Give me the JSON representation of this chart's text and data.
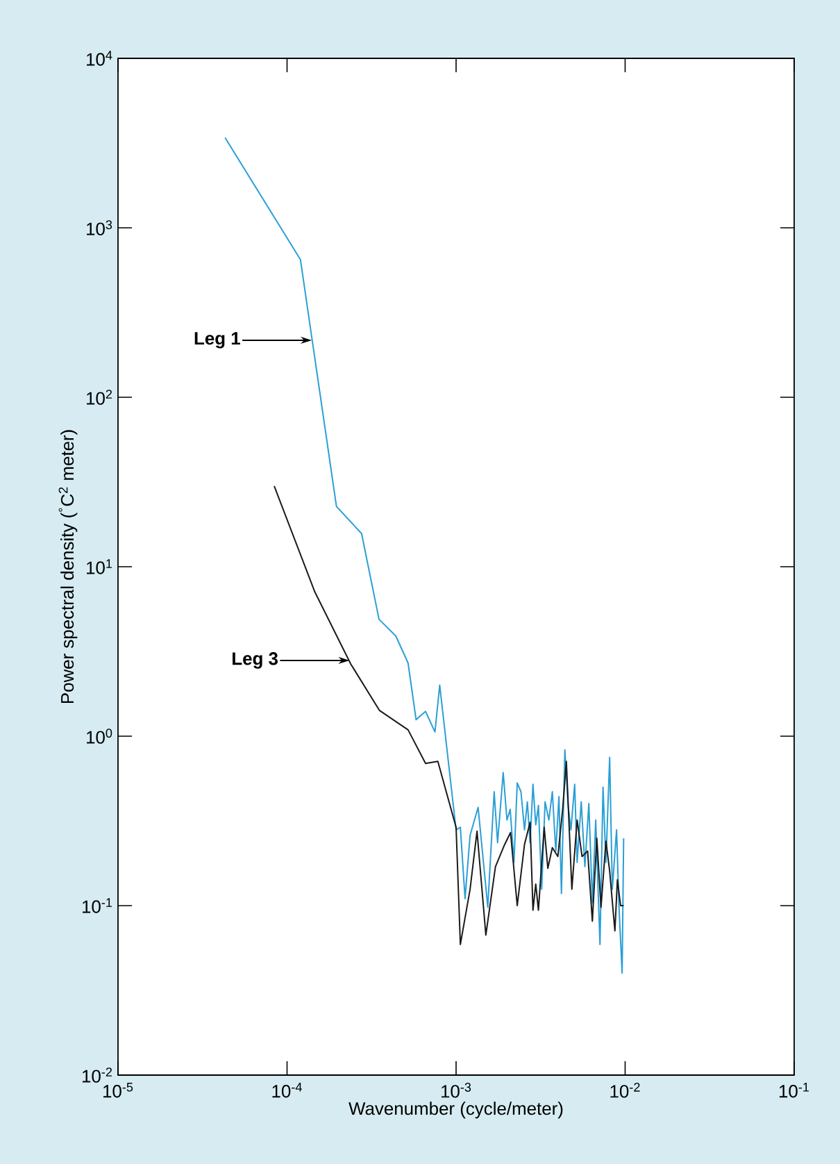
{
  "chart_data": {
    "type": "line",
    "xlabel": "Wavenumber (cycle/meter)",
    "ylabel": "Power spectral density ($^{°}$C$^{2}$ meter)",
    "log": "xy",
    "grid": false,
    "xlim": [
      1e-05,
      0.1
    ],
    "ylim": [
      0.01,
      10000
    ],
    "xticks": [
      {
        "value": 1e-05,
        "label": "10$^{-5}$"
      },
      {
        "value": 0.0001,
        "label": "10$^{-4}$"
      },
      {
        "value": 0.001,
        "label": "10$^{-3}$"
      },
      {
        "value": 0.01,
        "label": "10$^{-2}$"
      },
      {
        "value": 0.1,
        "label": "10$^{-1}$"
      }
    ],
    "yticks": [
      {
        "value": 0.01,
        "label": "10$^{-2}$"
      },
      {
        "value": 0.1,
        "label": "10$^{-1}$"
      },
      {
        "value": 1,
        "label": "10$^{0}$"
      },
      {
        "value": 10,
        "label": "10$^{1}$"
      },
      {
        "value": 100,
        "label": "10$^{2}$"
      },
      {
        "value": 1000,
        "label": "10$^{3}$"
      },
      {
        "value": 10000,
        "label": "10$^{4}$"
      }
    ],
    "series": [
      {
        "color": "#2a9fd6",
        "x": [
          4.3e-05,
          0.00012,
          0.000196,
          0.000276,
          0.00035,
          0.00044,
          0.00052,
          0.00058,
          0.00066,
          0.00075,
          0.0008,
          0.001,
          0.00106,
          0.00113,
          0.00121,
          0.00135,
          0.00154,
          0.00168,
          0.00176,
          0.0019,
          0.002,
          0.00209,
          0.0022,
          0.0023,
          0.00242,
          0.00254,
          0.00264,
          0.00274,
          0.00285,
          0.00296,
          0.00307,
          0.00321,
          0.00336,
          0.00354,
          0.00371,
          0.00389,
          0.00406,
          0.0042,
          0.0044,
          0.0046,
          0.00478,
          0.00503,
          0.0052,
          0.0055,
          0.00578,
          0.0061,
          0.0064,
          0.0067,
          0.0071,
          0.0074,
          0.0077,
          0.0081,
          0.0084,
          0.0089,
          0.0092,
          0.0096,
          0.0098
        ],
        "values": [
          3400,
          650,
          22.7,
          15.7,
          4.9,
          3.9,
          2.7,
          1.25,
          1.4,
          1.06,
          2.0,
          0.28,
          0.29,
          0.11,
          0.26,
          0.38,
          0.098,
          0.47,
          0.235,
          0.61,
          0.32,
          0.37,
          0.18,
          0.53,
          0.47,
          0.28,
          0.41,
          0.235,
          0.52,
          0.3,
          0.39,
          0.125,
          0.41,
          0.32,
          0.47,
          0.21,
          0.44,
          0.118,
          0.83,
          0.39,
          0.28,
          0.52,
          0.18,
          0.41,
          0.17,
          0.4,
          0.104,
          0.32,
          0.059,
          0.5,
          0.18,
          0.75,
          0.125,
          0.28,
          0.098,
          0.04,
          0.25
        ]
      },
      {
        "color": "#1a1a1a",
        "x": [
          8.4e-05,
          0.000146,
          0.000238,
          0.000352,
          0.00052,
          0.00066,
          0.00078,
          0.001,
          0.00106,
          0.00121,
          0.00133,
          0.0015,
          0.00171,
          0.00194,
          0.0021,
          0.0023,
          0.00254,
          0.00274,
          0.00285,
          0.00296,
          0.00307,
          0.00332,
          0.00349,
          0.00371,
          0.004,
          0.00427,
          0.00449,
          0.00484,
          0.0052,
          0.00556,
          0.006,
          0.0064,
          0.0068,
          0.0072,
          0.0077,
          0.0081,
          0.0087,
          0.009,
          0.0094,
          0.0098
        ],
        "values": [
          29.9,
          7.1,
          2.67,
          1.42,
          1.09,
          0.69,
          0.71,
          0.29,
          0.059,
          0.125,
          0.275,
          0.067,
          0.17,
          0.23,
          0.27,
          0.1,
          0.23,
          0.31,
          0.094,
          0.134,
          0.094,
          0.29,
          0.166,
          0.22,
          0.195,
          0.37,
          0.71,
          0.125,
          0.32,
          0.195,
          0.21,
          0.081,
          0.25,
          0.098,
          0.24,
          0.16,
          0.071,
          0.142,
          0.1,
          0.1
        ]
      }
    ],
    "annotations": [
      {
        "text": "Leg 1",
        "x": 0.00014,
        "y": 217
      },
      {
        "text": "Leg 3",
        "x": 0.000234,
        "y": 2.8
      }
    ]
  }
}
